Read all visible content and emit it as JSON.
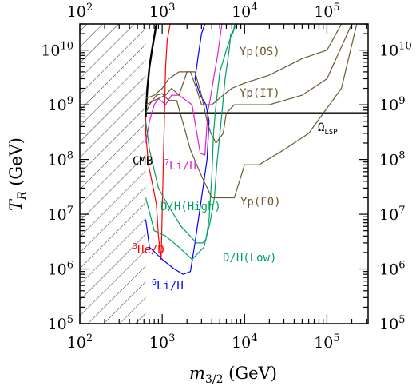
{
  "chart_data": {
    "type": "line",
    "xlabel": "m3/2 (GeV)",
    "ylabel": "TR (GeV)",
    "x_scale": "log",
    "y_scale": "log",
    "xlim": [
      100,
      316000
    ],
    "ylim": [
      100000,
      30000000000
    ],
    "x_ticks": [
      {
        "value": 100,
        "label": "10",
        "exp": "2"
      },
      {
        "value": 1000,
        "label": "10",
        "exp": "3"
      },
      {
        "value": 10000,
        "label": "10",
        "exp": "4"
      },
      {
        "value": 100000,
        "label": "10",
        "exp": "5"
      }
    ],
    "y_ticks": [
      {
        "value": 100000,
        "label": "10",
        "exp": "5"
      },
      {
        "value": 1000000,
        "label": "10",
        "exp": "6"
      },
      {
        "value": 10000000,
        "label": "10",
        "exp": "7"
      },
      {
        "value": 100000000,
        "label": "10",
        "exp": "8"
      },
      {
        "value": 1000000000,
        "label": "10",
        "exp": "9"
      },
      {
        "value": 10000000000,
        "label": "10",
        "exp": "10"
      }
    ],
    "excluded_region": {
      "x_min": 100,
      "x_max": 630,
      "pattern": "hatched"
    },
    "series": [
      {
        "name": "CMB",
        "color": "#000000",
        "x": [
          630,
          640,
          660,
          700,
          750,
          850
        ],
        "y": [
          600000000,
          1000000000,
          2000000000,
          5000000000,
          10000000000,
          30000000000
        ]
      },
      {
        "name": "ΩLSP",
        "color": "#000000",
        "x": [
          630,
          316000
        ],
        "y": [
          700000000,
          700000000
        ]
      },
      {
        "name": "3He/D",
        "color": "#ff0000",
        "x": [
          630,
          630,
          680,
          780,
          850,
          900,
          970,
          1100,
          1150,
          1250
        ],
        "y": [
          600000000,
          300000000,
          80000000,
          30000000,
          15000000,
          4000000,
          1500000,
          5000000000,
          15000000000,
          30000000000
        ]
      },
      {
        "name": "7Li/H",
        "color": "#e020d0",
        "x": [
          630,
          700,
          800,
          900,
          1100,
          1300,
          1600,
          2300,
          2900,
          3300,
          3600,
          3800,
          4200,
          4700,
          5300
        ],
        "y": [
          200000000,
          500000000,
          1000000000,
          1300000000,
          1000000000,
          1500000000,
          1500000000,
          1000000000,
          130000000,
          120000000,
          800000000,
          1200000000,
          3000000000,
          8000000000,
          30000000000
        ]
      },
      {
        "name": "6Li/H",
        "color": "#0000ff",
        "x": [
          630,
          700,
          1000,
          1400,
          1800,
          2200,
          2500,
          3000,
          3500,
          3700,
          3400,
          2900,
          2500,
          2800,
          3000,
          3300
        ],
        "y": [
          8000000,
          2500000,
          1500000,
          1000000,
          800000,
          900000,
          3000000,
          20000000,
          100000000,
          500000000,
          1000000000,
          1500000000,
          3000000000,
          10000000000,
          20000000000,
          30000000000
        ]
      },
      {
        "name": "D/H(High)",
        "color": "#00a060",
        "x": [
          630,
          800,
          1100,
          1600,
          2300,
          3200,
          3800,
          4300,
          4600,
          4900,
          5300,
          5800,
          6500,
          6800,
          7200,
          7600,
          7800
        ],
        "y": [
          20000000,
          5000000,
          4000000,
          2500000,
          1500000,
          2500000,
          7000000,
          20000000,
          80000000,
          200000000,
          700000000,
          3000000000,
          10000000000,
          20000000000,
          20000000000,
          30000000000,
          30000000000
        ]
      },
      {
        "name": "D/H(Low)",
        "color": "#00a060",
        "x": [
          630,
          700,
          900,
          1200,
          1700,
          2600,
          3100,
          3400,
          3700,
          4000,
          4200,
          4500,
          5000,
          6000,
          7000,
          8000
        ],
        "y": [
          500000000,
          150000000,
          30000000,
          14000000,
          6000000,
          3000000,
          3000000,
          3500000,
          8000000,
          50000000,
          300000000,
          1000000000,
          4000000000,
          10000000000,
          20000000000,
          30000000000
        ]
      },
      {
        "name": "Yp(F0)",
        "color": "#6b5a2e",
        "x": [
          630,
          700,
          850,
          1000,
          1200,
          1500,
          2200,
          3000,
          4000,
          5500,
          7500,
          10000,
          15000,
          30000,
          60000,
          150000,
          230000,
          316000
        ],
        "y": [
          700000000,
          1000000000,
          1500000000,
          1600000000,
          1200000000,
          1200000000,
          150000000,
          50000000,
          20000000,
          20000000,
          20000000,
          80000000,
          80000000,
          150000000,
          300000000,
          2000000000,
          30000000000,
          30000000000
        ]
      },
      {
        "name": "Yp(IT)",
        "color": "#6b5a2e",
        "x": [
          630,
          800,
          1100,
          1300,
          1600,
          2000,
          2500,
          3000,
          3500,
          3900,
          4500,
          5500,
          6000,
          6500,
          7500,
          10000,
          20000,
          50000,
          100000,
          200000
        ],
        "y": [
          1000000000,
          1200000000,
          1500000000,
          2000000000,
          1500000000,
          4000000000,
          4000000000,
          1500000000,
          500000000,
          300000000,
          200000000,
          300000000,
          700000000,
          800000000,
          1000000000,
          1000000000,
          1000000000,
          1500000000,
          3000000000,
          30000000000
        ]
      },
      {
        "name": "Yp(OS)",
        "color": "#6b5a2e",
        "x": [
          630,
          800,
          1000,
          1200,
          1600,
          2200,
          2600,
          3000,
          4000,
          5500,
          7000,
          10000,
          20000,
          50000,
          100000,
          150000
        ],
        "y": [
          1300000000,
          1500000000,
          2000000000,
          3000000000,
          4000000000,
          4000000000,
          2000000000,
          1000000000,
          1000000000,
          1500000000,
          2000000000,
          2500000000,
          3500000000,
          7000000000,
          10000000000,
          30000000000
        ]
      }
    ],
    "annotations": [
      {
        "text": "CMB",
        "color": "#000000"
      },
      {
        "text": "ΩLSP",
        "color": "#000000"
      },
      {
        "text": "Yp(OS)",
        "color": "#6b5a2e"
      },
      {
        "text": "Yp(IT)",
        "color": "#6b5a2e"
      },
      {
        "text": "Yp(F0)",
        "color": "#6b5a2e"
      },
      {
        "text": "7Li/H",
        "color": "#e020d0"
      },
      {
        "text": "D/H(High)",
        "color": "#00a060"
      },
      {
        "text": "D/H(Low)",
        "color": "#00a060"
      },
      {
        "text": "3He/D",
        "color": "#ff0000"
      },
      {
        "text": "6Li/H",
        "color": "#0000ff"
      }
    ]
  }
}
